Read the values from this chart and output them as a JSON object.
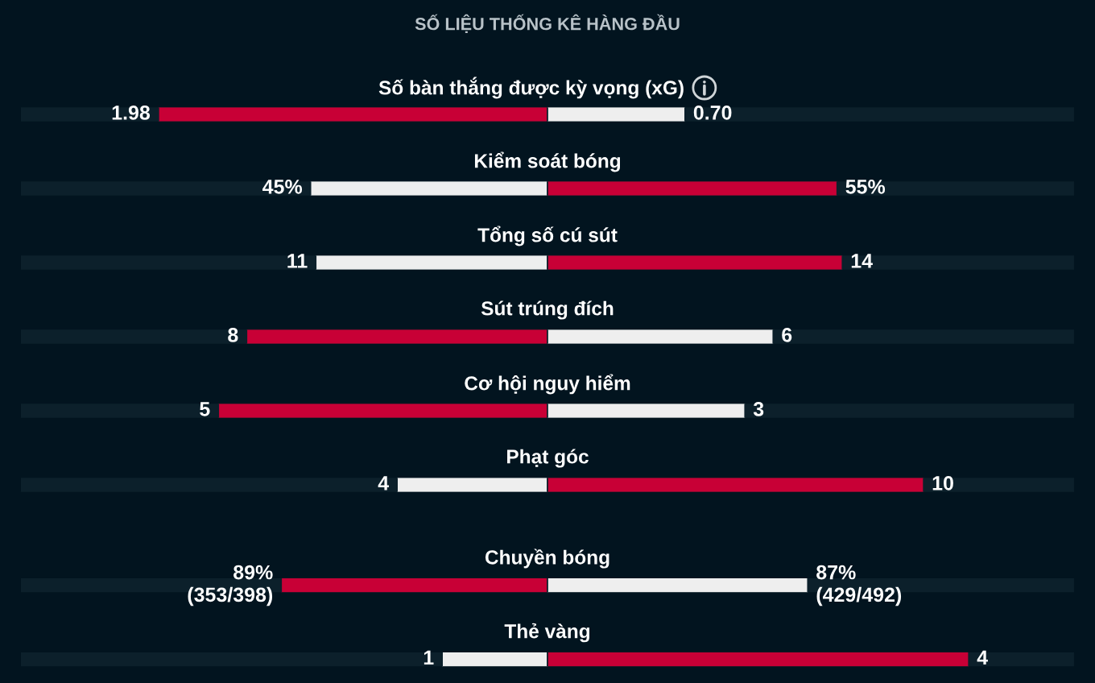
{
  "chart_data": [
    {
      "type": "bar",
      "orientation": "horizontal",
      "stacked": true,
      "title": "SỐ LIỆU THỐNG KÊ HÀNG ĐẦU",
      "tick_labels": "y",
      "categories": [
        "Số bàn thắng được kỳ vọng (xG)"
      ],
      "series": [
        {
          "values": [
            1.98
          ],
          "color": "#c80036",
          "value_labels": [
            "1.98"
          ]
        },
        {
          "values": [
            0.7
          ],
          "color": "#eeeeee",
          "value_labels": [
            "0.70"
          ]
        }
      ]
    },
    {
      "type": "bar",
      "orientation": "horizontal",
      "stacked": true,
      "tick_labels": "y",
      "categories": [
        "Kiểm soát bóng"
      ],
      "series": [
        {
          "values": [
            45
          ],
          "color": "#eeeeee",
          "value_labels": [
            "45%"
          ]
        },
        {
          "values": [
            55
          ],
          "color": "#c80036",
          "value_labels": [
            "55%"
          ]
        }
      ]
    },
    {
      "type": "bar",
      "orientation": "horizontal",
      "stacked": true,
      "tick_labels": "y",
      "categories": [
        "Tổng số cú sút"
      ],
      "series": [
        {
          "values": [
            11
          ],
          "color": "#eeeeee",
          "value_labels": [
            "11"
          ]
        },
        {
          "values": [
            14
          ],
          "color": "#c80036",
          "value_labels": [
            "14"
          ]
        }
      ]
    },
    {
      "type": "bar",
      "orientation": "horizontal",
      "stacked": true,
      "tick_labels": "y",
      "categories": [
        "Sút trúng đích"
      ],
      "series": [
        {
          "values": [
            8
          ],
          "color": "#c80036",
          "value_labels": [
            "8"
          ]
        },
        {
          "values": [
            6
          ],
          "color": "#eeeeee",
          "value_labels": [
            "6"
          ]
        }
      ]
    },
    {
      "type": "bar",
      "orientation": "horizontal",
      "stacked": true,
      "tick_labels": "y",
      "categories": [
        "Cơ hội nguy hiểm"
      ],
      "series": [
        {
          "values": [
            5
          ],
          "color": "#c80036",
          "value_labels": [
            "5"
          ]
        },
        {
          "values": [
            3
          ],
          "color": "#eeeeee",
          "value_labels": [
            "3"
          ]
        }
      ]
    },
    {
      "type": "bar",
      "orientation": "horizontal",
      "stacked": true,
      "tick_labels": "y",
      "categories": [
        "Phạt góc"
      ],
      "series": [
        {
          "values": [
            4
          ],
          "color": "#eeeeee",
          "value_labels": [
            "4"
          ]
        },
        {
          "values": [
            10
          ],
          "color": "#c80036",
          "value_labels": [
            "10"
          ]
        }
      ]
    },
    {
      "type": "bar",
      "orientation": "horizontal",
      "stacked": true,
      "tick_labels": "y",
      "categories": [
        "Chuyền bóng"
      ],
      "series": [
        {
          "values": [
            89
          ],
          "color": "#c80036",
          "value_labels": [
            "89%\n(353/398)"
          ]
        },
        {
          "values": [
            87
          ],
          "color": "#eeeeee",
          "value_labels": [
            "87%\n(429/492)"
          ]
        }
      ]
    },
    {
      "type": "bar",
      "orientation": "horizontal",
      "stacked": true,
      "tick_labels": "y",
      "categories": [
        "Thẻ vàng"
      ],
      "series": [
        {
          "values": [
            1
          ],
          "color": "#eeeeee",
          "value_labels": [
            "1"
          ]
        },
        {
          "values": [
            4
          ],
          "color": "#c80036",
          "value_labels": [
            "4"
          ]
        }
      ]
    }
  ]
}
